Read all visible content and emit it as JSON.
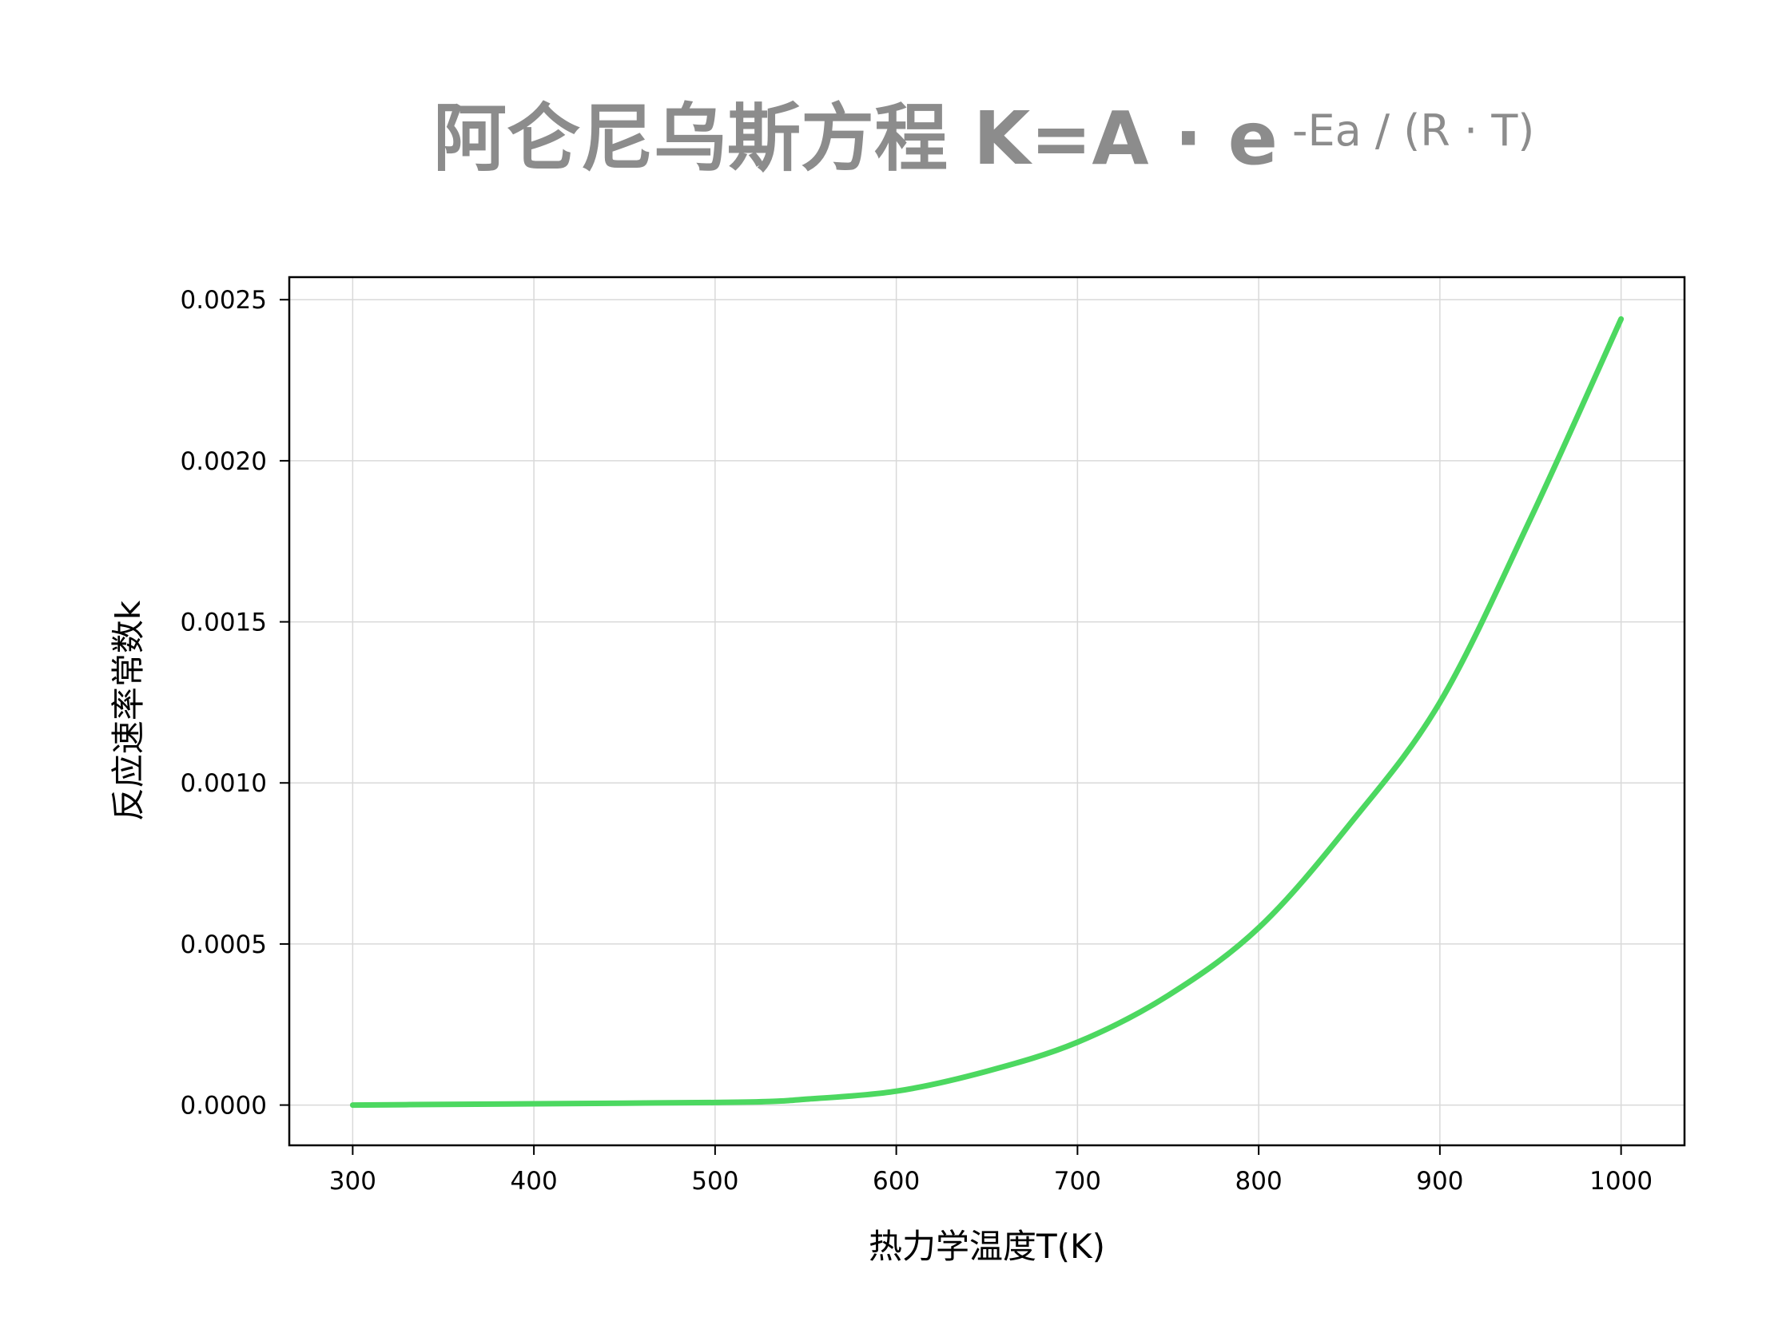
{
  "chart_data": {
    "type": "line",
    "title": {
      "main": "阿仑尼乌斯方程 K=A · e",
      "superscript": "-Ea / (R · T)"
    },
    "xlabel": "热力学温度T(K)",
    "ylabel": "反应速率常数k",
    "xlim": [
      265,
      1035
    ],
    "ylim": [
      -0.000125,
      0.00257
    ],
    "x_ticks": [
      300,
      400,
      500,
      600,
      700,
      800,
      900,
      1000
    ],
    "x_tick_labels": [
      "300",
      "400",
      "500",
      "600",
      "700",
      "800",
      "900",
      "1000"
    ],
    "y_ticks": [
      0.0,
      0.0005,
      0.001,
      0.0015,
      0.002,
      0.0025
    ],
    "y_tick_labels": [
      "0.0000",
      "0.0005",
      "0.0010",
      "0.0015",
      "0.0020",
      "0.0025"
    ],
    "grid": true,
    "colors": {
      "line": "#4cd860",
      "title": "#8c8c8c"
    },
    "series": [
      {
        "x": [
          300,
          350,
          400,
          450,
          500,
          530,
          550,
          600,
          650,
          700,
          750,
          800,
          850,
          900,
          950,
          1000
        ],
        "y": [
          0.0,
          2e-06,
          4e-06,
          6e-06,
          8e-06,
          1.1e-05,
          1.8e-05,
          4.3e-05,
          0.000105,
          0.000195,
          0.00034,
          0.00055,
          0.00087,
          0.00125,
          0.00182,
          0.00244
        ]
      }
    ]
  }
}
